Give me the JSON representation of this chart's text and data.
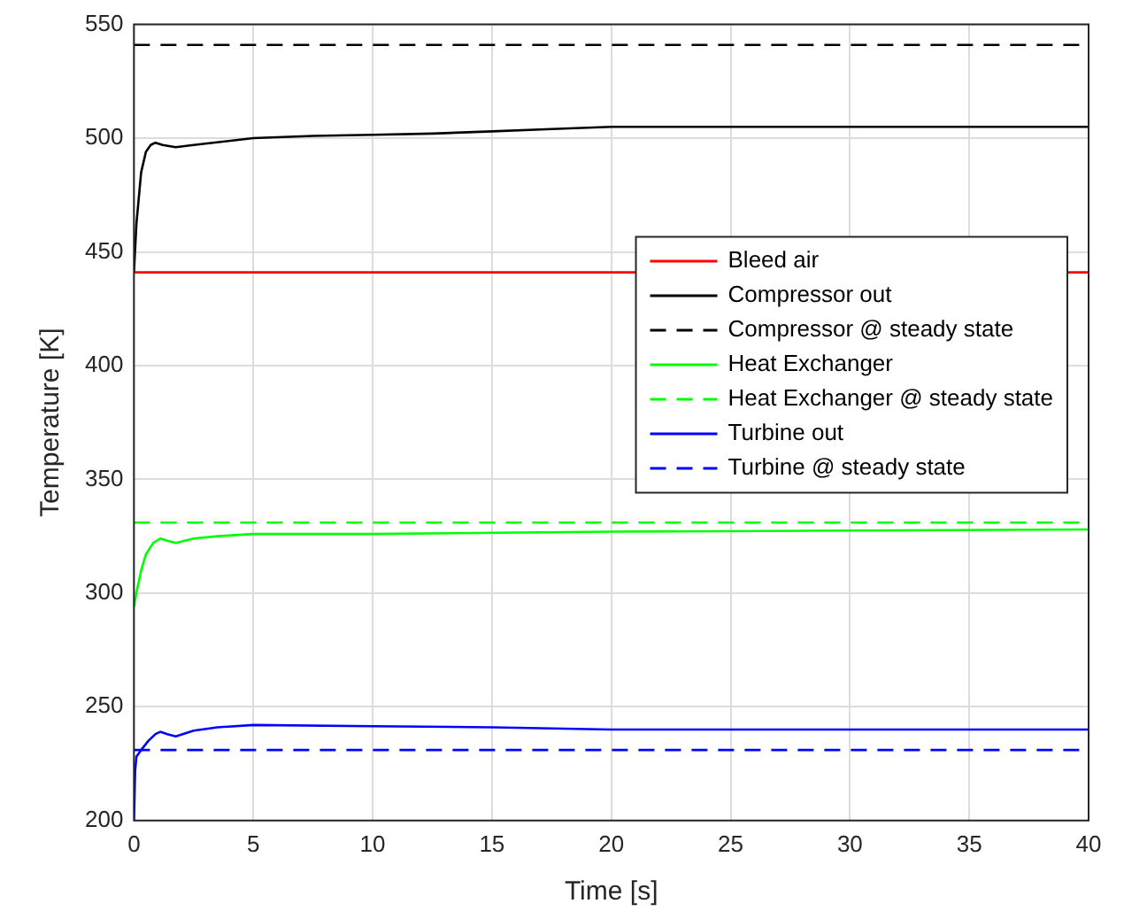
{
  "chart_data": {
    "type": "line",
    "xlabel": "Time [s]",
    "ylabel": "Temperature [K]",
    "xlim": [
      0,
      40
    ],
    "ylim": [
      200,
      550
    ],
    "xticks": [
      0,
      5,
      10,
      15,
      20,
      25,
      30,
      35,
      40
    ],
    "yticks": [
      200,
      250,
      300,
      350,
      400,
      450,
      500,
      550
    ],
    "grid": true,
    "legend": "right",
    "marker": "none",
    "series": [
      {
        "name": "Bleed air",
        "color": "#ff0000",
        "x": [
          0,
          40
        ],
        "values": [
          441,
          441
        ]
      },
      {
        "name": "Compressor out",
        "color": "#000000",
        "x": [
          0,
          0.1,
          0.3,
          0.5,
          0.7,
          0.9,
          1.2,
          1.75,
          2.5,
          5,
          7.5,
          10,
          12.5,
          15,
          17.5,
          20,
          25,
          30,
          40
        ],
        "values": [
          441,
          462,
          485,
          494,
          497,
          498,
          497,
          496,
          497,
          500,
          501,
          501.5,
          502,
          503,
          504,
          505,
          505,
          505,
          505
        ]
      },
      {
        "name": "Compressor @ steady state",
        "color": "#000000",
        "line_style": "dashed",
        "x": [
          0,
          40
        ],
        "values": [
          541,
          541
        ]
      },
      {
        "name": "Heat Exchanger",
        "color": "#00ff00",
        "x": [
          0,
          0.1,
          0.3,
          0.5,
          0.8,
          1.1,
          1.4,
          1.75,
          2.5,
          3.5,
          5,
          10,
          20,
          30,
          40
        ],
        "values": [
          294,
          300,
          310,
          317,
          322,
          324,
          323,
          322,
          324,
          325,
          326,
          326,
          327,
          327.5,
          328
        ]
      },
      {
        "name": "Heat Exchanger @ steady state",
        "color": "#00ff00",
        "line_style": "dashed",
        "x": [
          0,
          40
        ],
        "values": [
          331,
          331
        ]
      },
      {
        "name": "Turbine out",
        "color": "#0000ff",
        "x": [
          0,
          0.05,
          0.1,
          0.3,
          0.6,
          0.9,
          1.1,
          1.4,
          1.75,
          2.5,
          3.5,
          5,
          10,
          15,
          20,
          30,
          40
        ],
        "values": [
          200,
          222,
          228,
          231,
          235,
          238,
          239,
          238,
          237,
          239.5,
          241,
          242,
          241.5,
          241,
          240,
          240,
          240
        ]
      },
      {
        "name": "Turbine @ steady state",
        "color": "#0000ff",
        "line_style": "dashed",
        "x": [
          0,
          40
        ],
        "values": [
          231,
          231
        ]
      }
    ]
  }
}
